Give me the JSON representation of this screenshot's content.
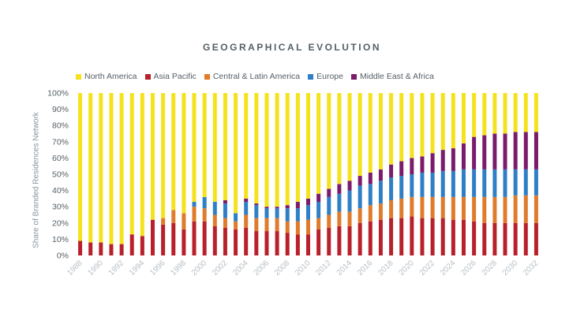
{
  "chart_data": {
    "type": "bar",
    "stacked": true,
    "title": "GEOGRAPHICAL EVOLUTION",
    "ylabel": "Share of Branded Residences Network",
    "xlabel": "",
    "ylim": [
      0,
      100
    ],
    "yticks": [
      "0%",
      "10%",
      "20%",
      "30%",
      "40%",
      "50%",
      "60%",
      "70%",
      "80%",
      "90%",
      "100%"
    ],
    "xticks": [
      "1988",
      "1990",
      "1992",
      "1994",
      "1996",
      "1998",
      "2000",
      "2002",
      "2004",
      "2006",
      "2008",
      "2010",
      "2012",
      "2014",
      "2016",
      "2018",
      "2020",
      "2022",
      "2024",
      "2026",
      "2028",
      "2030",
      "2032"
    ],
    "categories": [
      "1988",
      "1989",
      "1990",
      "1991",
      "1992",
      "1993",
      "1994",
      "1995",
      "1996",
      "1997",
      "1998",
      "1999",
      "2000",
      "2001",
      "2002",
      "2003",
      "2004",
      "2005",
      "2006",
      "2007",
      "2008",
      "2009",
      "2010",
      "2011",
      "2012",
      "2013",
      "2014",
      "2015",
      "2016",
      "2017",
      "2018",
      "2019",
      "2020",
      "2021",
      "2022",
      "2023",
      "2024",
      "2025",
      "2026",
      "2027",
      "2028",
      "2029",
      "2030",
      "2031",
      "2032"
    ],
    "legend_position": "top",
    "series": [
      {
        "name": "Asia Pacific",
        "color": "#b8202c",
        "values": [
          9,
          8,
          8,
          7,
          7,
          13,
          12,
          22,
          19,
          20,
          16,
          21,
          21,
          18,
          17,
          16,
          17,
          15,
          15,
          15,
          14,
          13,
          13,
          16,
          17,
          18,
          18,
          20,
          21,
          22,
          23,
          23,
          24,
          23,
          23,
          23,
          22,
          22,
          21,
          20,
          20,
          20,
          20,
          20,
          20
        ]
      },
      {
        "name": "Central & Latin America",
        "color": "#e07b2c",
        "values": [
          0,
          0,
          0,
          0,
          0,
          0,
          0,
          0,
          4,
          8,
          10,
          9,
          8,
          7,
          6,
          5,
          8,
          8,
          8,
          8,
          7,
          8,
          9,
          7,
          8,
          9,
          9,
          9,
          10,
          10,
          11,
          12,
          12,
          13,
          13,
          13,
          14,
          14,
          15,
          16,
          16,
          16,
          17,
          17,
          17
        ]
      },
      {
        "name": "Europe",
        "color": "#2f7fc6",
        "values": [
          0,
          0,
          0,
          0,
          0,
          0,
          0,
          0,
          0,
          0,
          0,
          3,
          7,
          8,
          9,
          5,
          8,
          8,
          6,
          6,
          8,
          8,
          9,
          10,
          11,
          11,
          13,
          14,
          13,
          14,
          14,
          14,
          14,
          15,
          15,
          16,
          16,
          17,
          17,
          17,
          17,
          17,
          16,
          16,
          16
        ]
      },
      {
        "name": "Middle East & Africa",
        "color": "#7a1b6b",
        "values": [
          0,
          0,
          0,
          0,
          0,
          0,
          0,
          0,
          0,
          0,
          0,
          0,
          0,
          0,
          2,
          0,
          2,
          1,
          1,
          1,
          2,
          4,
          4,
          5,
          5,
          6,
          6,
          6,
          7,
          7,
          8,
          9,
          10,
          10,
          12,
          13,
          14,
          16,
          20,
          21,
          22,
          22,
          23,
          23,
          23
        ]
      },
      {
        "name": "North America",
        "color": "#f4e21c",
        "values": [
          91,
          92,
          92,
          93,
          93,
          87,
          88,
          78,
          77,
          72,
          74,
          67,
          64,
          67,
          66,
          74,
          65,
          68,
          70,
          70,
          69,
          67,
          65,
          62,
          59,
          56,
          54,
          51,
          49,
          47,
          44,
          42,
          40,
          39,
          37,
          35,
          34,
          31,
          27,
          26,
          25,
          25,
          24,
          24,
          24
        ]
      }
    ]
  },
  "legend_order": [
    "North America",
    "Asia Pacific",
    "Central & Latin America",
    "Europe",
    "Middle East & Africa"
  ]
}
